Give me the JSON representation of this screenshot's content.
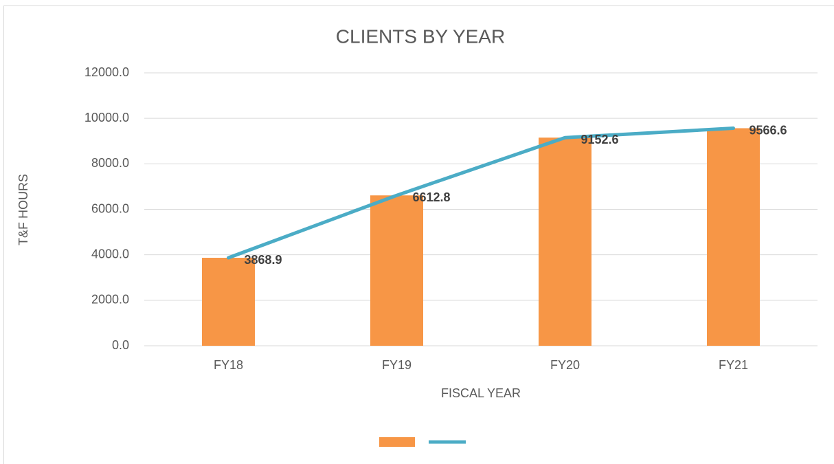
{
  "chart_data": {
    "type": "bar",
    "title": "CLIENTS BY YEAR",
    "x_label": "FISCAL YEAR",
    "y_label": "T&F HOURS",
    "categories": [
      "FY18",
      "FY19",
      "FY20",
      "FY21"
    ],
    "series": [
      {
        "type": "bar",
        "color": "#f79646",
        "values": [
          3868.9,
          6612.8,
          9152.6,
          9566.6
        ]
      },
      {
        "type": "line",
        "color": "#4bacc6",
        "values": [
          3868.9,
          6612.8,
          9152.6,
          9566.6
        ]
      }
    ],
    "ylim": [
      0,
      12000
    ],
    "yticks": [
      {
        "value": 0,
        "label": "0.0"
      },
      {
        "value": 2000,
        "label": "2000.0"
      },
      {
        "value": 4000,
        "label": "4000.0"
      },
      {
        "value": 6000,
        "label": "6000.0"
      },
      {
        "value": 8000,
        "label": "8000.0"
      },
      {
        "value": 10000,
        "label": "10000.0"
      },
      {
        "value": 12000,
        "label": "12000.0"
      }
    ],
    "grid": true,
    "legend": "bottom"
  }
}
